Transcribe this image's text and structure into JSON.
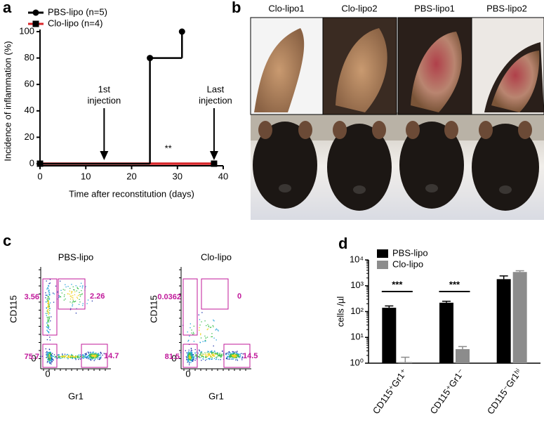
{
  "chart_data": [
    {
      "type": "line",
      "panel": "a",
      "xlabel": "Time after reconstitution (days)",
      "ylabel": "Incidence of inflammation (%)",
      "xlim": [
        0,
        40
      ],
      "xticks": [
        0,
        10,
        20,
        30,
        40
      ],
      "ylim": [
        0,
        100
      ],
      "yticks": [
        0,
        20,
        40,
        60,
        80,
        100
      ],
      "step": true,
      "series": [
        {
          "name": "PBS-lipo (n=5)",
          "color": "#000000",
          "marker": "circle",
          "marker_color": "#000000",
          "x": [
            0,
            24,
            31
          ],
          "values": [
            0,
            80,
            100
          ]
        },
        {
          "name": "Clo-lipo (n=4)",
          "color": "#d8262a",
          "marker": "square",
          "marker_color": "#000000",
          "x": [
            0,
            38
          ],
          "values": [
            0,
            0
          ]
        }
      ],
      "annotations": [
        {
          "text": [
            "1st",
            "injection"
          ],
          "x": 14,
          "arrow": true
        },
        {
          "text": [
            "**"
          ],
          "x": 28,
          "arrow": false
        },
        {
          "text": [
            "Last",
            "injection"
          ],
          "x": 38,
          "arrow": true
        }
      ]
    },
    {
      "type": "bar",
      "panel": "d",
      "ylabel": "cells /µl",
      "log_y": true,
      "ylim": [
        1,
        10000
      ],
      "yticks": [
        {
          "value": 1,
          "label": "10⁰"
        },
        {
          "value": 10,
          "label": "10¹"
        },
        {
          "value": 100,
          "label": "10²"
        },
        {
          "value": 1000,
          "label": "10³"
        },
        {
          "value": 10000,
          "label": "10⁴"
        }
      ],
      "categories": [
        "CD115⁺Gr1⁺",
        "CD115⁺Gr1⁻",
        "CD115⁻Gr1ʰⁱ"
      ],
      "series": [
        {
          "name": "PBS-lipo",
          "color": "#000000",
          "values": [
            140,
            220,
            1800
          ],
          "errors": [
            25,
            30,
            600
          ]
        },
        {
          "name": "Clo-lipo",
          "color": "#8c8c8c",
          "values": [
            1.1,
            3.5,
            3400
          ],
          "errors": [
            0.6,
            0.9,
            400
          ]
        }
      ],
      "annotations": [
        {
          "text": "***",
          "category": 0
        },
        {
          "text": "***",
          "category": 1
        }
      ]
    }
  ],
  "panel_b": {
    "label": "b",
    "photos": [
      "Clo-lipo1",
      "Clo-lipo2",
      "PBS-lipo1",
      "PBS-lipo2"
    ]
  },
  "panel_c": {
    "label": "c",
    "x_label": "Gr1",
    "y_label": "CD115",
    "zero_tick": "0",
    "plots": [
      {
        "title": "PBS-lipo",
        "gates": [
          3.56,
          2.26,
          75.7,
          14.7
        ]
      },
      {
        "title": "Clo-lipo",
        "gates": [
          0.0362,
          0,
          81.5,
          14.5
        ]
      }
    ]
  }
}
